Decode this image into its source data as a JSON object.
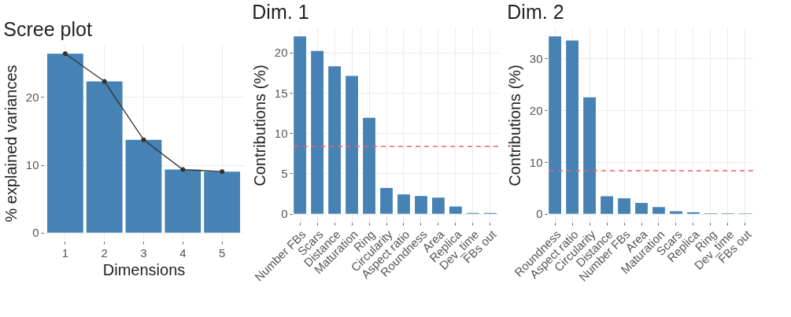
{
  "chart_data": [
    {
      "type": "bar",
      "title": "Scree plot",
      "xlabel": "Dimensions",
      "ylabel": "% explained variances",
      "categories": [
        "1",
        "2",
        "3",
        "4",
        "5"
      ],
      "ylim": [
        -1.3,
        27.7
      ],
      "yticks": [
        0,
        10,
        20
      ],
      "grid": true,
      "series": [
        {
          "color": "#4682b4",
          "values": [
            26.4,
            22.3,
            13.7,
            9.3,
            9.0
          ]
        },
        {
          "type": "line",
          "color": "#333333",
          "marker": "circle",
          "values": [
            26.4,
            22.3,
            13.7,
            9.3,
            9.0
          ]
        }
      ]
    },
    {
      "type": "bar",
      "title": "Dim. 1",
      "ylabel": "Contributions (%)",
      "categories": [
        "Number FBs",
        "Scars",
        "Distance",
        "Maturation",
        "Ring",
        "Circularity",
        "Aspect ratio",
        "Roundness",
        "Area",
        "Replica",
        "Dev_time",
        "FBs out"
      ],
      "ylim": [
        -1.1,
        23.1
      ],
      "yticks": [
        0,
        5,
        10,
        15,
        20
      ],
      "grid": true,
      "series": [
        {
          "color": "#4682b4",
          "values": [
            22.0,
            20.2,
            18.3,
            17.1,
            11.9,
            3.2,
            2.4,
            2.2,
            2.0,
            0.9,
            0.1,
            0.1
          ]
        }
      ],
      "ref_lines": [
        {
          "axis": "y",
          "value": 8.33,
          "color": "#e8636f",
          "line_style": "dashed"
        }
      ]
    },
    {
      "type": "bar",
      "title": "Dim. 2",
      "ylabel": "Contributions (%)",
      "categories": [
        "Roundness",
        "Aspect ratio",
        "Circularity",
        "Distance",
        "Number FBs",
        "Area",
        "Maturation",
        "Scars",
        "Replica",
        "Ring",
        "Dev_time",
        "FBs out"
      ],
      "ylim": [
        -1.7,
        36.0
      ],
      "yticks": [
        0,
        10,
        20,
        30
      ],
      "grid": true,
      "series": [
        {
          "color": "#4682b4",
          "values": [
            34.3,
            33.5,
            22.5,
            3.4,
            3.0,
            2.1,
            1.3,
            0.5,
            0.3,
            0.1,
            0.1,
            0.1
          ]
        }
      ],
      "ref_lines": [
        {
          "axis": "y",
          "value": 8.33,
          "color": "#e8636f",
          "line_style": "dashed"
        }
      ]
    }
  ]
}
